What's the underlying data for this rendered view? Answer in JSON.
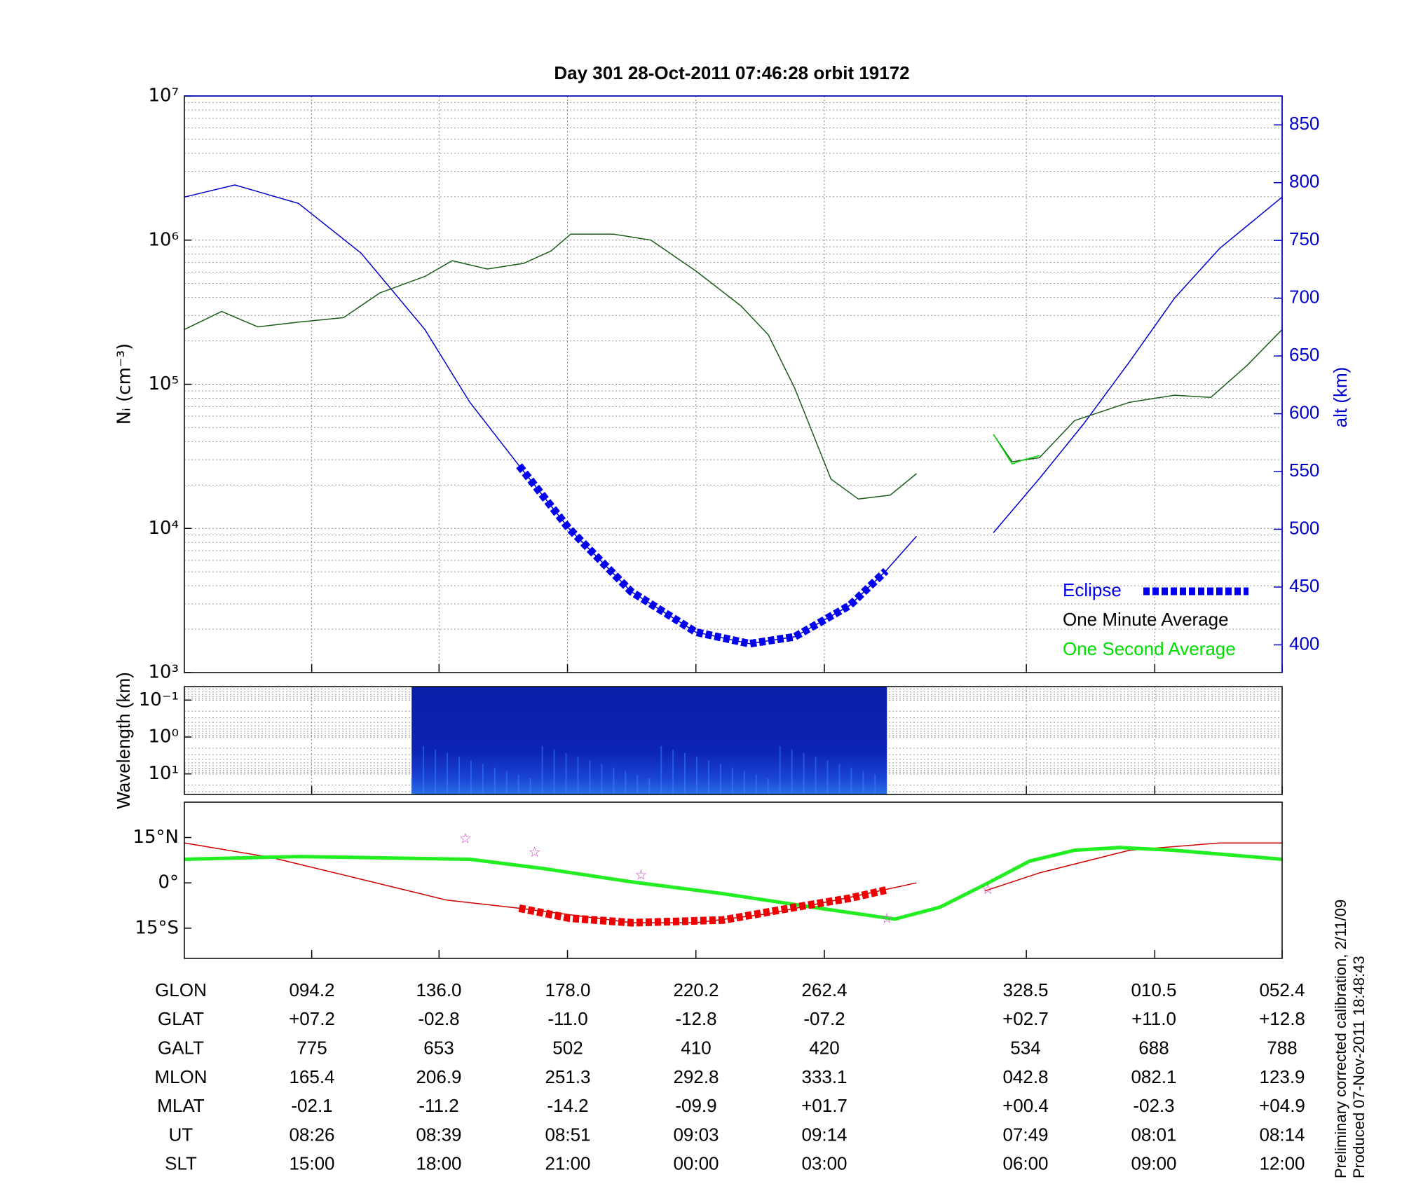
{
  "chart_data": [
    {
      "type": "line",
      "title": "Day 301  28-Oct-2011 07:46:28   orbit 19172",
      "ylabel": "Nᵢ (cm⁻³)",
      "y2label": "alt (km)",
      "yscale": "log",
      "grid": true,
      "xlim": [
        0,
        100
      ],
      "xticks": [
        11.6,
        23.2,
        34.9,
        46.6,
        58.3,
        76.7,
        88.4,
        100
      ],
      "ylim": [
        1000,
        10000000
      ],
      "yticks": [
        {
          "value": 1000,
          "label": "10³"
        },
        {
          "value": 10000,
          "label": "10⁴"
        },
        {
          "value": 100000,
          "label": "10⁵"
        },
        {
          "value": 1000000,
          "label": "10⁶"
        },
        {
          "value": 10000000,
          "label": "10⁷"
        }
      ],
      "y2lim": [
        376,
        875
      ],
      "y2ticks": [
        400,
        450,
        500,
        550,
        600,
        650,
        700,
        750,
        800,
        850
      ],
      "legend": "lower right",
      "series": [
        {
          "axis": "y2",
          "color": "#0000cc",
          "x": [
            0,
            4.6,
            10.4,
            16.1,
            21.9,
            26.0,
            30.5,
            35.0,
            40.7,
            46.6,
            51.5,
            55.6,
            60.6,
            63.9,
            66.7,
            null,
            73.7,
            77.9,
            81.9,
            86.1,
            90.2,
            94.3,
            100
          ],
          "values": [
            787.5,
            798,
            782,
            739,
            673,
            610,
            555,
            501,
            446,
            411,
            401,
            407,
            434,
            464,
            494,
            null,
            497,
            544,
            591,
            645,
            700,
            743,
            787.5
          ]
        },
        {
          "name": "Eclipse",
          "axis": "y2",
          "color": "#0000ee",
          "marker": "square",
          "x": [
            30.5,
            35.0,
            40.7,
            46.6,
            51.5,
            55.6,
            60.6,
            63.9
          ],
          "values": [
            555,
            501,
            446,
            411,
            401,
            407,
            434,
            464
          ]
        },
        {
          "name": "One Minute Average",
          "color": "#1a5c1a",
          "x": [
            0,
            3.4,
            6.7,
            10.4,
            14.5,
            17.8,
            21.9,
            24.4,
            27.6,
            30.9,
            33.4,
            35.2,
            39.1,
            42.5,
            46.6,
            50.7,
            53.2,
            55.6,
            58.9,
            61.4,
            64.3,
            66.7,
            null,
            73.7,
            75.4,
            77.9,
            81.1,
            86.1,
            90.2,
            93.5,
            96.8,
            100
          ],
          "values": [
            240000,
            320000,
            250000,
            270000,
            290000,
            430000,
            560000,
            720000,
            630000,
            690000,
            840000,
            1100000,
            1100000,
            1000000,
            610000,
            350000,
            220000,
            94000,
            22000,
            16000,
            17000,
            24000,
            null,
            45000,
            29000,
            31000,
            56000,
            75000,
            84000,
            81000,
            135000,
            240000
          ]
        },
        {
          "name": "One Second Average",
          "color": "#00dd00",
          "x": [
            73.7,
            74.5,
            75.4,
            76.5,
            77.9
          ],
          "values": [
            45000,
            36000,
            28000,
            30000,
            32000
          ]
        }
      ]
    },
    {
      "type": "heatmap",
      "ylabel": "Wavelength (km)",
      "yscale": "log",
      "grid": true,
      "xlim": [
        0,
        100
      ],
      "xticks": [
        11.6,
        23.2,
        34.9,
        46.6,
        58.3,
        76.7,
        88.4,
        100
      ],
      "ylim": [
        36,
        0.043
      ],
      "yticks": [
        {
          "value": 0.1,
          "label": "10⁻¹"
        },
        {
          "value": 1,
          "label": "10⁰"
        },
        {
          "value": 10,
          "label": "10¹"
        }
      ],
      "xrange": [
        20.7,
        64.0
      ]
    },
    {
      "type": "line",
      "grid": false,
      "xlim": [
        0,
        100
      ],
      "xticks": [
        11.6,
        23.2,
        34.9,
        46.6,
        58.3,
        76.7,
        88.4,
        100
      ],
      "ylim": [
        -25,
        26.7
      ],
      "yticks": [
        {
          "value": 15,
          "label": "15°N"
        },
        {
          "value": 0,
          "label": "0°"
        },
        {
          "value": -15,
          "label": "15°S"
        }
      ],
      "series": [
        {
          "color": "#cc0000",
          "x": [
            0,
            7.9,
            16.1,
            23.9,
            30.5,
            40.8,
            46.6,
            53.2,
            59.8,
            66.7,
            null,
            72.9,
            77.9,
            86.1,
            94.3,
            100
          ],
          "values": [
            13.2,
            8.4,
            1.2,
            -5.7,
            -8.4,
            -13.2,
            -13.2,
            -10.2,
            -5.4,
            0,
            null,
            -2.7,
            3.3,
            10.8,
            13.2,
            13.2
          ]
        },
        {
          "color": "#22ee22",
          "style": "thick",
          "x": [
            0,
            10.4,
            26.0,
            32.6,
            40.8,
            49.1,
            57.3,
            64.7,
            68.8,
            72.9,
            77.0,
            81.1,
            85.2,
            90.1,
            95.1,
            100
          ],
          "values": [
            7.8,
            8.7,
            7.8,
            4.8,
            0.3,
            -3.6,
            -8.1,
            -12,
            -8.1,
            -0.6,
            7.2,
            10.8,
            11.7,
            10.8,
            9.3,
            7.8
          ]
        },
        {
          "color": "#ee0000",
          "marker": "square",
          "x": [
            30.5,
            35.1,
            40.8,
            49.1,
            55.6,
            60.6,
            63.9
          ],
          "values": [
            -8.4,
            -11.7,
            -13.2,
            -12.3,
            -8.1,
            -5.1,
            -2.4
          ]
        },
        {
          "color": "#cc44cc",
          "marker": "star",
          "x": [
            25.6,
            31.9,
            41.6,
            64.0,
            73.2
          ],
          "values": [
            14.4,
            9.9,
            2.4,
            -12,
            -2.4
          ]
        }
      ]
    }
  ],
  "table": {
    "rows": [
      {
        "label": "GLON",
        "values": [
          "094.2",
          "136.0",
          "178.0",
          "220.2",
          "262.4",
          "328.5",
          "010.5",
          "052.4"
        ]
      },
      {
        "label": "GLAT",
        "values": [
          "+07.2",
          "-02.8",
          "-11.0",
          "-12.8",
          "-07.2",
          "+02.7",
          "+11.0",
          "+12.8"
        ]
      },
      {
        "label": "GALT",
        "values": [
          "775",
          "653",
          "502",
          "410",
          "420",
          "534",
          "688",
          "788"
        ]
      },
      {
        "label": "MLON",
        "values": [
          "165.4",
          "206.9",
          "251.3",
          "292.8",
          "333.1",
          "042.8",
          "082.1",
          "123.9"
        ]
      },
      {
        "label": "MLAT",
        "values": [
          "-02.1",
          "-11.2",
          "-14.2",
          "-09.9",
          "+01.7",
          "+00.4",
          "-02.3",
          "+04.9"
        ]
      },
      {
        "label": "UT",
        "values": [
          "08:26",
          "08:39",
          "08:51",
          "09:03",
          "09:14",
          "07:49",
          "08:01",
          "08:14"
        ]
      },
      {
        "label": "SLT",
        "values": [
          "15:00",
          "18:00",
          "21:00",
          "00:00",
          "03:00",
          "06:00",
          "09:00",
          "12:00"
        ]
      }
    ]
  },
  "notes": [
    "Preliminary corrected calibration, 2/11/09",
    "Produced 07-Nov-2011 18:48:43"
  ]
}
